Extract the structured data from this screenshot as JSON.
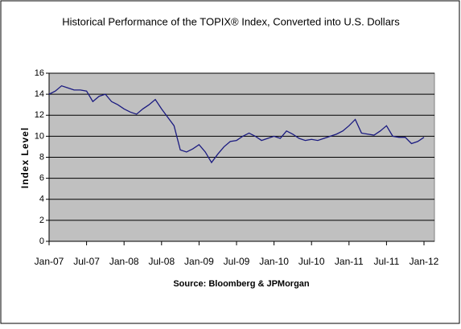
{
  "chart_data": {
    "type": "line",
    "title": "Historical Performance of the TOPIX® Index, Converted into U.S. Dollars",
    "ylabel": "Index Level",
    "source": "Source: Bloomberg & JPMorgan",
    "x": [
      "Jan-07",
      null,
      null,
      null,
      null,
      null,
      "Jul-07",
      null,
      null,
      null,
      null,
      null,
      "Jan-08",
      null,
      null,
      null,
      null,
      null,
      "Jul-08",
      null,
      null,
      null,
      null,
      null,
      "Jan-09",
      null,
      null,
      null,
      null,
      null,
      "Jul-09",
      null,
      null,
      null,
      null,
      null,
      "Jan-10",
      null,
      null,
      null,
      null,
      null,
      "Jul-10",
      null,
      null,
      null,
      null,
      null,
      "Jan-11",
      null,
      null,
      null,
      null,
      null,
      "Jul-11",
      null,
      null,
      null,
      null,
      null,
      "Jan-12"
    ],
    "series": [
      {
        "color": "#1a1a80",
        "values": [
          14.0,
          14.3,
          14.8,
          14.6,
          14.4,
          14.4,
          14.3,
          13.3,
          13.8,
          14.0,
          13.3,
          13.0,
          12.6,
          12.3,
          12.1,
          12.6,
          13.0,
          13.5,
          12.6,
          11.8,
          11.0,
          8.7,
          8.5,
          8.8,
          9.2,
          8.5,
          7.5,
          8.3,
          9.0,
          9.5,
          9.6,
          10.0,
          10.3,
          10.0,
          9.6,
          9.8,
          10.0,
          9.8,
          10.5,
          10.2,
          9.8,
          9.6,
          9.7,
          9.6,
          9.8,
          10.0,
          10.2,
          10.5,
          11.0,
          11.6,
          10.3,
          10.2,
          10.1,
          10.5,
          11.0,
          10.0,
          9.9,
          9.9,
          9.3,
          9.5,
          9.9
        ]
      }
    ],
    "ylim": [
      0,
      16
    ],
    "yticks": [
      0,
      2,
      4,
      6,
      8,
      10,
      12,
      14,
      16
    ],
    "grid": true,
    "plot_background": "#c0c0c0"
  }
}
